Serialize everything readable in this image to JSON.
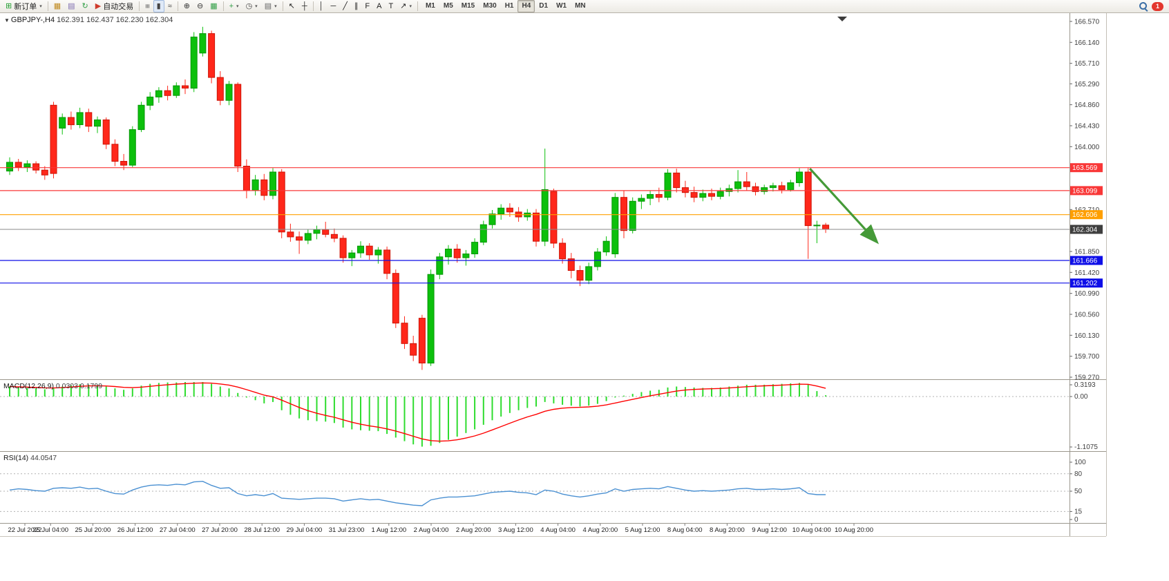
{
  "toolbar": {
    "items": [
      {
        "name": "new-order-button",
        "icon": "new-order-icon",
        "glyph": "⊞",
        "color": "#1f9d2f",
        "label": "新订单",
        "caret": true
      },
      {
        "type": "sep"
      },
      {
        "name": "charts-button",
        "icon": "chart-window-icon",
        "glyph": "▦",
        "color": "#c08a1e"
      },
      {
        "name": "profiles-button",
        "icon": "profiles-icon",
        "glyph": "▤",
        "color": "#7d6bb0"
      },
      {
        "name": "refresh-button",
        "icon": "refresh-icon",
        "glyph": "↻",
        "color": "#2f9e44"
      },
      {
        "name": "autotrading-button",
        "icon": "autotrading-icon",
        "glyph": "▶",
        "color": "#cf3a2b",
        "label": "自动交易"
      },
      {
        "type": "sep"
      },
      {
        "name": "bar-chart-type-button",
        "icon": "bar-chart-icon",
        "glyph": "≡",
        "color": "#444",
        "rotate": true
      },
      {
        "name": "candlestick-chart-type-button",
        "icon": "candlestick-chart-icon",
        "glyph": "▮",
        "color": "#444",
        "active": true
      },
      {
        "name": "line-chart-type-button",
        "icon": "line-chart-icon",
        "glyph": "≈",
        "color": "#444"
      },
      {
        "type": "sep"
      },
      {
        "name": "zoom-in-button",
        "icon": "zoom-in-icon",
        "glyph": "⊕",
        "color": "#333"
      },
      {
        "name": "zoom-out-button",
        "icon": "zoom-out-icon",
        "glyph": "⊖",
        "color": "#333"
      },
      {
        "name": "tile-windows-button",
        "icon": "tile-windows-icon",
        "glyph": "▦",
        "color": "#2f9e44"
      },
      {
        "type": "sep"
      },
      {
        "name": "indicators-button",
        "icon": "indicators-icon",
        "glyph": "+",
        "color": "#2f9e44",
        "caret": true
      },
      {
        "name": "periods-button",
        "icon": "clock-icon",
        "glyph": "◷",
        "color": "#444",
        "caret": true
      },
      {
        "name": "templates-button",
        "icon": "templates-icon",
        "glyph": "▤",
        "color": "#666",
        "caret": true
      },
      {
        "type": "sep"
      },
      {
        "name": "cursor-button",
        "icon": "cursor-icon",
        "glyph": "↖",
        "color": "#222"
      },
      {
        "name": "crosshair-button",
        "icon": "crosshair-icon",
        "glyph": "┼",
        "color": "#222"
      },
      {
        "type": "sep"
      },
      {
        "name": "vertical-line-button",
        "icon": "vertical-line-icon",
        "glyph": "│",
        "color": "#222"
      },
      {
        "name": "horizontal-line-button",
        "icon": "horizontal-line-icon",
        "glyph": "─",
        "color": "#222"
      },
      {
        "name": "trendline-button",
        "icon": "trendline-icon",
        "glyph": "╱",
        "color": "#222"
      },
      {
        "name": "channel-button",
        "icon": "channel-icon",
        "glyph": "∥",
        "color": "#222"
      },
      {
        "name": "fibonacci-button",
        "icon": "fibonacci-icon",
        "glyph": "F",
        "color": "#222"
      },
      {
        "name": "text-button",
        "icon": "text-icon",
        "glyph": "A",
        "color": "#222"
      },
      {
        "name": "label-button",
        "icon": "label-icon",
        "glyph": "T",
        "color": "#222"
      },
      {
        "name": "arrows-button",
        "icon": "arrow-tool-icon",
        "glyph": "↗",
        "color": "#222",
        "caret": true
      },
      {
        "type": "sep"
      }
    ],
    "timeframes": [
      {
        "label": "M1"
      },
      {
        "label": "M5"
      },
      {
        "label": "M15"
      },
      {
        "label": "M30"
      },
      {
        "label": "H1"
      },
      {
        "label": "H4",
        "active": true
      },
      {
        "label": "D1"
      },
      {
        "label": "W1"
      },
      {
        "label": "MN"
      }
    ],
    "notification_count": "1"
  },
  "chart": {
    "symbol_title": "GBPJPY-,H4",
    "ohlc_text": "162.391 162.437 162.230 162.304"
  },
  "chart_data": {
    "type": "candlestick",
    "symbol": "GBPJPY-",
    "period": "H4",
    "ohlc_current": {
      "open": "162.391",
      "high": "162.437",
      "low": "162.230",
      "close": "162.304"
    },
    "price_axis_labels": [
      "166.570",
      "166.140",
      "165.710",
      "165.290",
      "164.860",
      "164.430",
      "164.000",
      "162.710",
      "161.850",
      "161.420",
      "160.990",
      "160.560",
      "160.130",
      "159.700",
      "159.270"
    ],
    "time_axis_labels": [
      "22 Jul 2022",
      "25 Jul 04:00",
      "25 Jul 20:00",
      "26 Jul 12:00",
      "27 Jul 04:00",
      "27 Jul 20:00",
      "28 Jul 12:00",
      "29 Jul 04:00",
      "31 Jul 23:00",
      "1 Aug 12:00",
      "2 Aug 04:00",
      "2 Aug 20:00",
      "3 Aug 12:00",
      "4 Aug 04:00",
      "4 Aug 20:00",
      "5 Aug 12:00",
      "8 Aug 04:00",
      "8 Aug 20:00",
      "9 Aug 12:00",
      "10 Aug 04:00",
      "10 Aug 20:00"
    ],
    "hlines": [
      {
        "price": 163.569,
        "label": "163.569",
        "color": "#f93737"
      },
      {
        "price": 163.099,
        "label": "163.099",
        "color": "#f93737"
      },
      {
        "price": 162.606,
        "label": "162.606",
        "color": "#ff9f00"
      },
      {
        "price": 161.666,
        "label": "161.666",
        "color": "#0f0fe8"
      },
      {
        "price": 161.202,
        "label": "161.202",
        "color": "#0f0fe8"
      }
    ],
    "bid_line": {
      "price": 162.304,
      "label": "162.304",
      "line_color": "#8a8a8a",
      "tag_color": "#3f3f3f"
    },
    "candles": [
      [
        163.5,
        163.78,
        163.42,
        163.68
      ],
      [
        163.68,
        163.75,
        163.5,
        163.58
      ],
      [
        163.58,
        163.72,
        163.48,
        163.65
      ],
      [
        163.65,
        163.7,
        163.45,
        163.52
      ],
      [
        163.52,
        163.6,
        163.32,
        163.42
      ],
      [
        164.85,
        164.92,
        163.35,
        163.45
      ],
      [
        164.38,
        164.68,
        164.25,
        164.6
      ],
      [
        164.6,
        164.72,
        164.35,
        164.45
      ],
      [
        164.45,
        164.8,
        164.38,
        164.7
      ],
      [
        164.7,
        164.78,
        164.3,
        164.42
      ],
      [
        164.42,
        164.62,
        164.28,
        164.55
      ],
      [
        164.55,
        164.6,
        163.95,
        164.05
      ],
      [
        164.05,
        164.15,
        163.6,
        163.7
      ],
      [
        163.7,
        163.85,
        163.52,
        163.62
      ],
      [
        163.62,
        164.42,
        163.58,
        164.35
      ],
      [
        164.35,
        164.92,
        164.3,
        164.85
      ],
      [
        164.85,
        165.12,
        164.75,
        165.02
      ],
      [
        165.02,
        165.22,
        164.9,
        165.15
      ],
      [
        165.15,
        165.25,
        164.95,
        165.05
      ],
      [
        165.05,
        165.32,
        165.0,
        165.25
      ],
      [
        165.25,
        165.38,
        165.08,
        165.2
      ],
      [
        165.2,
        166.35,
        165.12,
        166.25
      ],
      [
        165.92,
        166.46,
        165.85,
        166.32
      ],
      [
        166.32,
        166.38,
        165.3,
        165.42
      ],
      [
        165.42,
        165.55,
        164.85,
        164.95
      ],
      [
        164.95,
        165.35,
        164.85,
        165.28
      ],
      [
        165.28,
        165.32,
        163.48,
        163.6
      ],
      [
        163.6,
        163.74,
        162.94,
        163.1
      ],
      [
        163.1,
        163.42,
        163.0,
        163.32
      ],
      [
        163.32,
        163.44,
        162.9,
        163.0
      ],
      [
        163.0,
        163.56,
        162.92,
        163.48
      ],
      [
        163.48,
        163.54,
        162.12,
        162.25
      ],
      [
        162.25,
        162.42,
        162.05,
        162.15
      ],
      [
        162.15,
        162.26,
        161.8,
        162.08
      ],
      [
        162.08,
        162.3,
        162.0,
        162.22
      ],
      [
        162.22,
        162.38,
        162.1,
        162.3
      ],
      [
        162.3,
        162.46,
        162.14,
        162.2
      ],
      [
        162.2,
        162.32,
        162.04,
        162.12
      ],
      [
        162.12,
        162.18,
        161.62,
        161.72
      ],
      [
        161.72,
        161.88,
        161.55,
        161.82
      ],
      [
        161.82,
        162.06,
        161.72,
        161.96
      ],
      [
        161.96,
        162.02,
        161.68,
        161.78
      ],
      [
        161.78,
        161.94,
        161.6,
        161.88
      ],
      [
        161.88,
        161.95,
        161.28,
        161.4
      ],
      [
        161.4,
        161.48,
        160.28,
        160.38
      ],
      [
        160.38,
        160.52,
        159.85,
        159.96
      ],
      [
        159.96,
        160.12,
        159.6,
        159.72
      ],
      [
        160.48,
        160.55,
        159.42,
        159.56
      ],
      [
        159.56,
        161.48,
        159.5,
        161.38
      ],
      [
        161.38,
        161.82,
        161.28,
        161.74
      ],
      [
        161.74,
        161.98,
        161.58,
        161.9
      ],
      [
        161.9,
        162.0,
        161.62,
        161.72
      ],
      [
        161.72,
        161.88,
        161.56,
        161.8
      ],
      [
        161.8,
        162.12,
        161.72,
        162.04
      ],
      [
        162.04,
        162.48,
        161.98,
        162.4
      ],
      [
        162.4,
        162.7,
        162.32,
        162.62
      ],
      [
        162.62,
        162.82,
        162.5,
        162.74
      ],
      [
        162.74,
        162.84,
        162.56,
        162.66
      ],
      [
        162.66,
        162.76,
        162.46,
        162.56
      ],
      [
        162.56,
        162.72,
        162.48,
        162.64
      ],
      [
        162.64,
        162.72,
        161.95,
        162.06
      ],
      [
        162.06,
        163.96,
        161.96,
        163.12
      ],
      [
        163.08,
        163.14,
        161.92,
        162.02
      ],
      [
        162.02,
        162.12,
        161.6,
        161.7
      ],
      [
        161.7,
        161.82,
        161.3,
        161.46
      ],
      [
        161.46,
        161.56,
        161.14,
        161.26
      ],
      [
        161.26,
        161.62,
        161.18,
        161.54
      ],
      [
        161.54,
        161.92,
        161.46,
        161.84
      ],
      [
        161.84,
        162.16,
        161.76,
        162.06
      ],
      [
        161.8,
        163.05,
        161.72,
        162.96
      ],
      [
        162.96,
        163.1,
        162.12,
        162.28
      ],
      [
        162.28,
        162.96,
        162.22,
        162.88
      ],
      [
        162.88,
        163.02,
        162.72,
        162.94
      ],
      [
        162.94,
        163.1,
        162.8,
        163.02
      ],
      [
        163.02,
        163.16,
        162.86,
        162.96
      ],
      [
        162.96,
        163.54,
        162.9,
        163.46
      ],
      [
        163.46,
        163.55,
        163.06,
        163.16
      ],
      [
        163.16,
        163.3,
        162.96,
        163.06
      ],
      [
        163.06,
        163.18,
        162.86,
        162.96
      ],
      [
        162.96,
        163.12,
        162.88,
        163.04
      ],
      [
        163.04,
        163.14,
        162.9,
        162.98
      ],
      [
        162.98,
        163.16,
        162.92,
        163.08
      ],
      [
        163.08,
        163.22,
        162.98,
        163.14
      ],
      [
        163.14,
        163.52,
        163.06,
        163.28
      ],
      [
        163.28,
        163.48,
        163.1,
        163.18
      ],
      [
        163.18,
        163.26,
        163.0,
        163.08
      ],
      [
        163.08,
        163.22,
        163.02,
        163.16
      ],
      [
        163.16,
        163.26,
        163.08,
        163.2
      ],
      [
        163.2,
        163.28,
        163.04,
        163.12
      ],
      [
        163.12,
        163.32,
        163.08,
        163.26
      ],
      [
        163.26,
        163.56,
        163.18,
        163.48
      ],
      [
        163.48,
        163.56,
        161.7,
        162.38
      ],
      [
        162.38,
        162.48,
        162.02,
        162.39
      ],
      [
        162.391,
        162.437,
        162.23,
        162.304
      ]
    ],
    "macd": {
      "label": "MACD(12,26,9)",
      "value_main": "0.0303",
      "value_signal": "0.1799",
      "axis_labels": [
        "0.3193",
        "0.00",
        "-1.1075"
      ],
      "histogram": [
        0.22,
        0.2,
        0.19,
        0.18,
        0.16,
        0.18,
        0.22,
        0.25,
        0.27,
        0.26,
        0.25,
        0.22,
        0.18,
        0.15,
        0.18,
        0.24,
        0.28,
        0.3,
        0.31,
        0.31,
        0.32,
        0.32,
        0.32,
        0.28,
        0.22,
        0.18,
        0.08,
        -0.02,
        -0.08,
        -0.15,
        -0.12,
        -0.3,
        -0.4,
        -0.48,
        -0.52,
        -0.54,
        -0.55,
        -0.58,
        -0.68,
        -0.72,
        -0.74,
        -0.75,
        -0.76,
        -0.82,
        -0.9,
        -0.98,
        -1.05,
        -1.1,
        -1.08,
        -1.02,
        -0.95,
        -0.88,
        -0.8,
        -0.72,
        -0.62,
        -0.52,
        -0.44,
        -0.36,
        -0.3,
        -0.25,
        -0.22,
        -0.12,
        -0.15,
        -0.18,
        -0.2,
        -0.22,
        -0.2,
        -0.16,
        -0.1,
        -0.02,
        0.02,
        0.06,
        0.1,
        0.13,
        0.15,
        0.2,
        0.22,
        0.21,
        0.2,
        0.19,
        0.19,
        0.2,
        0.22,
        0.24,
        0.26,
        0.26,
        0.26,
        0.27,
        0.28,
        0.29,
        0.3,
        0.26,
        0.12,
        0.03
      ]
    },
    "rsi": {
      "label": "RSI(14)",
      "value": "44.0547",
      "axis_labels": [
        "100",
        "80",
        "50",
        "15",
        "0"
      ],
      "levels": [
        80,
        50,
        15
      ],
      "values": [
        52,
        54,
        53,
        51,
        50,
        55,
        56,
        55,
        57,
        54,
        55,
        50,
        46,
        45,
        52,
        57,
        60,
        61,
        60,
        62,
        61,
        66,
        67,
        60,
        55,
        56,
        46,
        42,
        44,
        42,
        46,
        38,
        37,
        36,
        37,
        38,
        38,
        37,
        33,
        35,
        37,
        35,
        36,
        33,
        30,
        28,
        26,
        25,
        35,
        38,
        40,
        40,
        41,
        42,
        45,
        48,
        49,
        50,
        48,
        47,
        44,
        52,
        50,
        45,
        42,
        40,
        42,
        45,
        47,
        54,
        50,
        53,
        54,
        55,
        54,
        58,
        55,
        52,
        50,
        51,
        50,
        51,
        52,
        54,
        55,
        53,
        53,
        54,
        53,
        54,
        56,
        46,
        44,
        44.05
      ]
    },
    "annotations": [
      {
        "type": "arrow",
        "from_index": 91.2,
        "from_price": 163.55,
        "to_index": 98.8,
        "to_price": 162.05,
        "color": "#459a38"
      }
    ],
    "colors": {
      "bull": "#0cc00c",
      "bull_border": "#079607",
      "bear": "#ff271a",
      "bear_border": "#cc1407",
      "macd_hist": "#2edc2e",
      "macd_signal": "#ff0000",
      "rsi_line": "#4a90d2",
      "grid_dash": "#b0b0b0",
      "axis_text": "#3e3e3e",
      "separator": "#9a968c"
    }
  }
}
